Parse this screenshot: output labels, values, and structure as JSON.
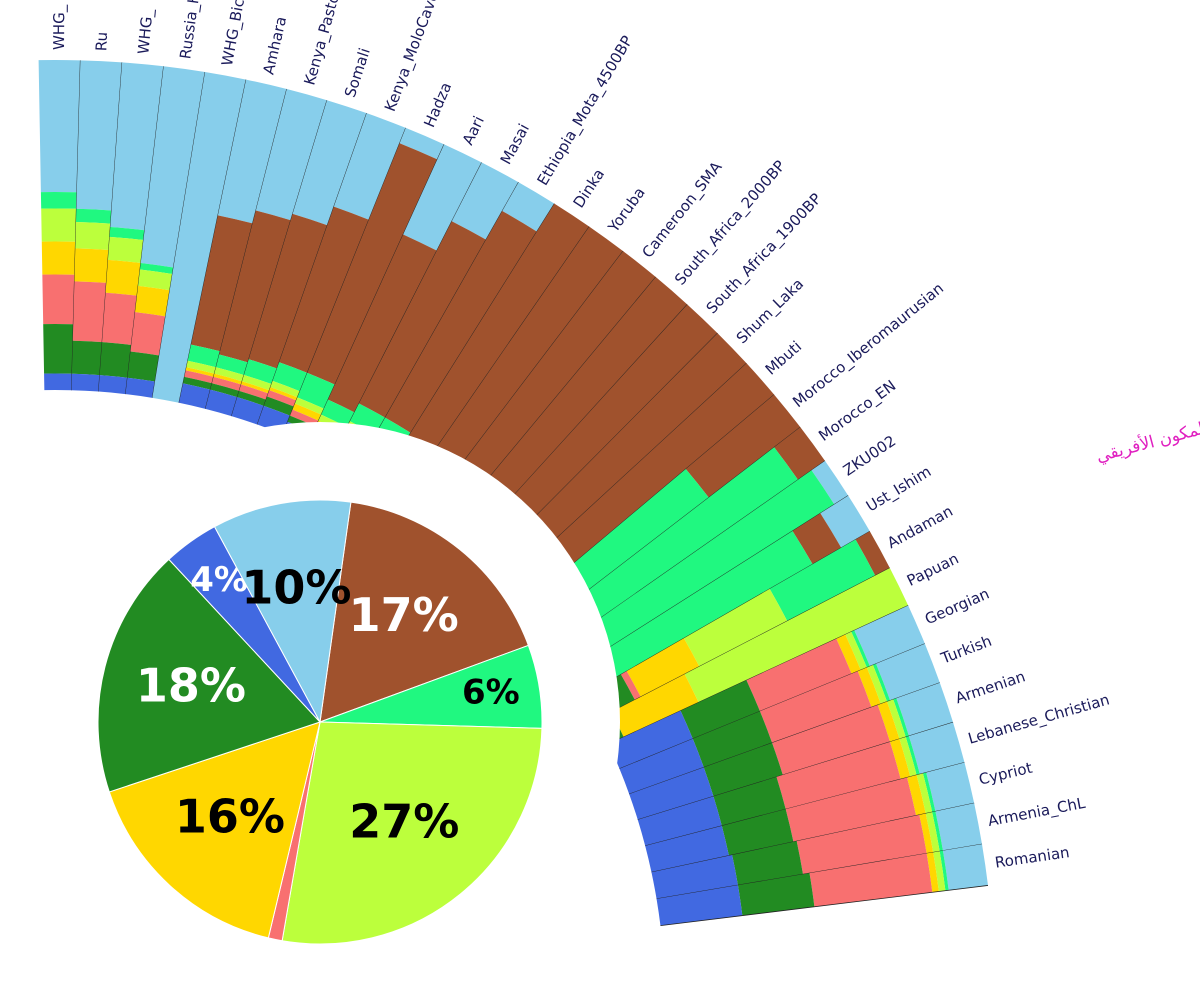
{
  "colors": {
    "Amazonia": "#cfe0f0",
    "steppe_blue": "#4169e1",
    "dark_green": "#228b22",
    "gold": "#ffd700",
    "salmon": "#f87070",
    "lime": "#bcff3c",
    "spring_green": "#20f880",
    "sky_blue": "#87ceeb",
    "brown": "#a0522d"
  },
  "chart_data": [
    {
      "type": "pie",
      "title": "",
      "slices": [
        {
          "label": "17%",
          "value": 17,
          "color": "#a0522d",
          "text_color": "#ffffff"
        },
        {
          "label": "6%",
          "value": 6,
          "color": "#20f880",
          "text_color": "#000000"
        },
        {
          "label": "27%",
          "value": 27,
          "color": "#bcff3c",
          "text_color": "#000000"
        },
        {
          "label": "",
          "value": 1,
          "color": "#f87070",
          "text_color": "#000000"
        },
        {
          "label": "16%",
          "value": 16,
          "color": "#ffd700",
          "text_color": "#000000"
        },
        {
          "label": "18%",
          "value": 18,
          "color": "#228b22",
          "text_color": "#ffffff"
        },
        {
          "label": "4%",
          "value": 4,
          "color": "#4169e1",
          "text_color": "#ffffff"
        },
        {
          "label": "10%",
          "value": 10,
          "color": "#87ceeb",
          "text_color": "#000000"
        }
      ]
    },
    {
      "type": "bar",
      "subtype": "circular-admixture",
      "annotation": "المكون الأفريقي",
      "categories": [
        "WHG_",
        "Ru",
        "WHG_",
        "Russia_H",
        "WHG_Bichon",
        "Amhara",
        "Kenya_PastoralN",
        "Somali",
        "Kenya_MoloCave_PastoralN",
        "Hadza",
        "Aari",
        "Masai",
        "Ethiopia_Mota_4500BP",
        "Dinka",
        "Yoruba",
        "Cameroon_SMA",
        "South_Africa_2000BP",
        "South_Africa_1900BP",
        "Shum_Laka",
        "Mbuti",
        "Morocco_Iberomaurusian",
        "Morocco_EN",
        "ZKU002",
        "Ust_Ishim",
        "Andaman",
        "Papuan",
        "Georgian",
        "Turkish",
        "Armenian",
        "Lebanese_Christian",
        "Cypriot",
        "Armenia_ChL",
        "Romanian"
      ],
      "components": [
        "Sky blue",
        "Brown",
        "Spring green",
        "Lime",
        "Gold",
        "Salmon",
        "Dark green",
        "Blue"
      ],
      "compositions": [
        [
          0.4,
          0,
          0.05,
          0.1,
          0.1,
          0.15,
          0.15,
          0.05
        ],
        [
          0.45,
          0,
          0.04,
          0.08,
          0.1,
          0.18,
          0.1,
          0.05
        ],
        [
          0.5,
          0,
          0.03,
          0.07,
          0.1,
          0.15,
          0.1,
          0.05
        ],
        [
          0.6,
          0,
          0.02,
          0.05,
          0.08,
          0.12,
          0.08,
          0.05
        ],
        [
          1.0,
          0,
          0,
          0,
          0,
          0,
          0,
          0
        ],
        [
          0.42,
          0.4,
          0.05,
          0.02,
          0.01,
          0.02,
          0.02,
          0.06
        ],
        [
          0.38,
          0.45,
          0.04,
          0.02,
          0.01,
          0.02,
          0.02,
          0.06
        ],
        [
          0.36,
          0.46,
          0.05,
          0.02,
          0.01,
          0.02,
          0.02,
          0.06
        ],
        [
          0.3,
          0.5,
          0.06,
          0.02,
          0.01,
          0.02,
          0.03,
          0.06
        ],
        [
          0.05,
          0.75,
          0.08,
          0.02,
          0.02,
          0.02,
          0.02,
          0.04
        ],
        [
          0.3,
          0.55,
          0.05,
          0.02,
          0.01,
          0.02,
          0.02,
          0.03
        ],
        [
          0.2,
          0.62,
          0.06,
          0.02,
          0.02,
          0.03,
          0.02,
          0.03
        ],
        [
          0.1,
          0.72,
          0.06,
          0.02,
          0.02,
          0.03,
          0.02,
          0.03
        ],
        [
          0.0,
          0.85,
          0.06,
          0.02,
          0.02,
          0.02,
          0.01,
          0.02
        ],
        [
          0.0,
          0.88,
          0.05,
          0.02,
          0.01,
          0.02,
          0.01,
          0.01
        ],
        [
          0.0,
          0.9,
          0.04,
          0.02,
          0.01,
          0.01,
          0.01,
          0.01
        ],
        [
          0.0,
          0.82,
          0.08,
          0.02,
          0.02,
          0.02,
          0.02,
          0.02
        ],
        [
          0.0,
          0.84,
          0.07,
          0.02,
          0.02,
          0.02,
          0.01,
          0.02
        ],
        [
          0.0,
          0.95,
          0.02,
          0.01,
          0.01,
          0.0,
          0.0,
          0.01
        ],
        [
          0.0,
          0.98,
          0.01,
          0.0,
          0.0,
          0.0,
          0.0,
          0.01
        ],
        [
          0.0,
          0.35,
          0.6,
          0.0,
          0.0,
          0.0,
          0.0,
          0.05
        ],
        [
          0.0,
          0.1,
          0.85,
          0.02,
          0.0,
          0.0,
          0.0,
          0.03
        ],
        [
          0.05,
          0.0,
          0.95,
          0.0,
          0.0,
          0.0,
          0.0,
          0.0
        ],
        [
          0.1,
          0.1,
          0.8,
          0.0,
          0.0,
          0.0,
          0.0,
          0.0
        ],
        [
          0.0,
          0.05,
          0.3,
          0.3,
          0.2,
          0.02,
          0.1,
          0.03
        ],
        [
          0.0,
          0.0,
          0.0,
          0.7,
          0.25,
          0.0,
          0.03,
          0.02
        ],
        [
          0.18,
          0.0,
          0.01,
          0.02,
          0.03,
          0.3,
          0.22,
          0.24
        ],
        [
          0.16,
          0.0,
          0.01,
          0.02,
          0.03,
          0.32,
          0.22,
          0.24
        ],
        [
          0.14,
          0.0,
          0.01,
          0.02,
          0.03,
          0.34,
          0.22,
          0.24
        ],
        [
          0.14,
          0.0,
          0.01,
          0.02,
          0.03,
          0.36,
          0.2,
          0.24
        ],
        [
          0.12,
          0.0,
          0.01,
          0.02,
          0.03,
          0.38,
          0.2,
          0.24
        ],
        [
          0.12,
          0.0,
          0.01,
          0.02,
          0.02,
          0.38,
          0.2,
          0.25
        ],
        [
          0.12,
          0.0,
          0.01,
          0.02,
          0.02,
          0.36,
          0.22,
          0.25
        ]
      ]
    }
  ]
}
